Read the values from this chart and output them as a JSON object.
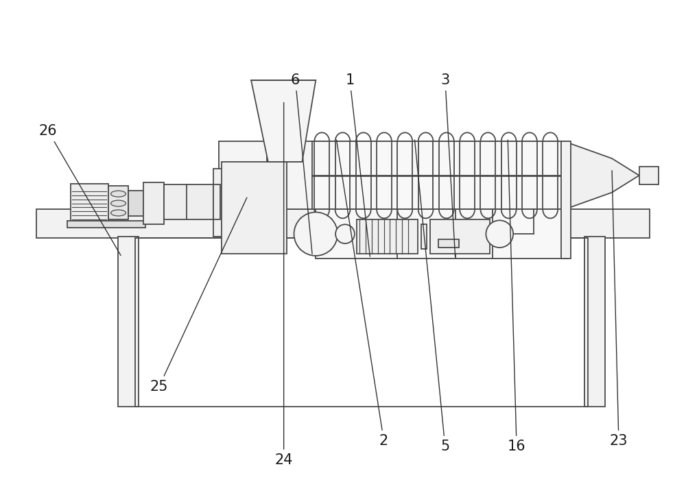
{
  "bg_color": "#ffffff",
  "line_color": "#4a4a4a",
  "lw": 1.3,
  "fig_width": 10.0,
  "fig_height": 7.35,
  "font_size": 15
}
